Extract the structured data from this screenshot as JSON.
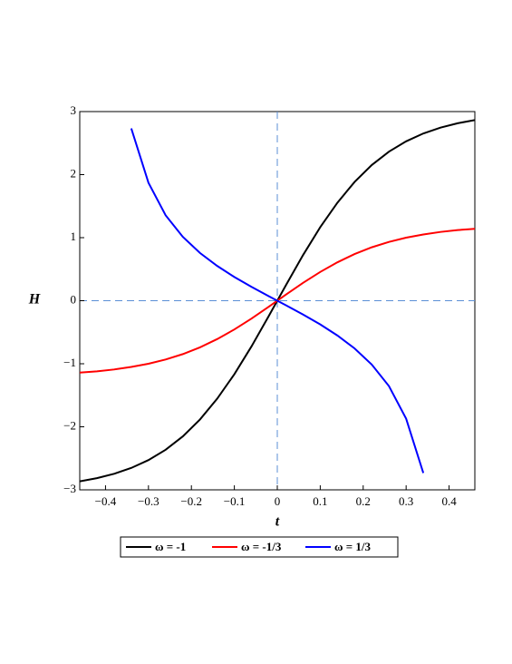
{
  "chart_data": {
    "type": "line",
    "xlabel": "t",
    "ylabel": "H",
    "x": [
      -0.46,
      -0.42,
      -0.38,
      -0.34,
      -0.3,
      -0.26,
      -0.22,
      -0.18,
      -0.14,
      -0.1,
      -0.06,
      -0.02,
      0.02,
      0.06,
      0.1,
      0.14,
      0.18,
      0.22,
      0.26,
      0.3,
      0.34,
      0.38,
      0.42,
      0.46
    ],
    "series": [
      {
        "name": "ω = -1",
        "color": "#000000",
        "values": [
          -2.865,
          -2.815,
          -2.746,
          -2.653,
          -2.528,
          -2.364,
          -2.152,
          -1.884,
          -1.555,
          -1.166,
          -0.724,
          -0.245,
          0.245,
          0.724,
          1.166,
          1.555,
          1.884,
          2.152,
          2.364,
          2.528,
          2.653,
          2.746,
          2.815,
          2.865
        ]
      },
      {
        "name": "ω = -1/3",
        "color": "#ff0000",
        "values": [
          -1.141,
          -1.12,
          -1.091,
          -1.051,
          -1.0,
          -0.933,
          -0.847,
          -0.74,
          -0.609,
          -0.456,
          -0.283,
          -0.096,
          0.096,
          0.283,
          0.456,
          0.609,
          0.74,
          0.847,
          0.933,
          1.0,
          1.051,
          1.091,
          1.12,
          1.141
        ]
      },
      {
        "name": "ω = 1/3",
        "color": "#0000ff",
        "values": [
          null,
          null,
          null,
          2.733,
          1.871,
          1.355,
          1.013,
          0.757,
          0.552,
          0.376,
          0.219,
          0.072,
          -0.072,
          -0.219,
          -0.376,
          -0.552,
          -0.757,
          -1.013,
          -1.355,
          -1.871,
          -2.733,
          null,
          null,
          null
        ]
      }
    ],
    "xlim": [
      -0.46,
      0.46
    ],
    "ylim": [
      -3,
      3
    ],
    "xticks": [
      {
        "value": -0.4,
        "label": "−0.4"
      },
      {
        "value": -0.3,
        "label": "−0.3"
      },
      {
        "value": -0.2,
        "label": "−0.2"
      },
      {
        "value": -0.1,
        "label": "−0.1"
      },
      0,
      0.1,
      0.2,
      0.3,
      0.4
    ],
    "yticks": [
      {
        "value": -3,
        "label": "−3"
      },
      {
        "value": -2,
        "label": "−2"
      },
      {
        "value": -1,
        "label": "−1"
      },
      0,
      1,
      2,
      3
    ],
    "zero_lines": true,
    "legend": "bottom"
  }
}
